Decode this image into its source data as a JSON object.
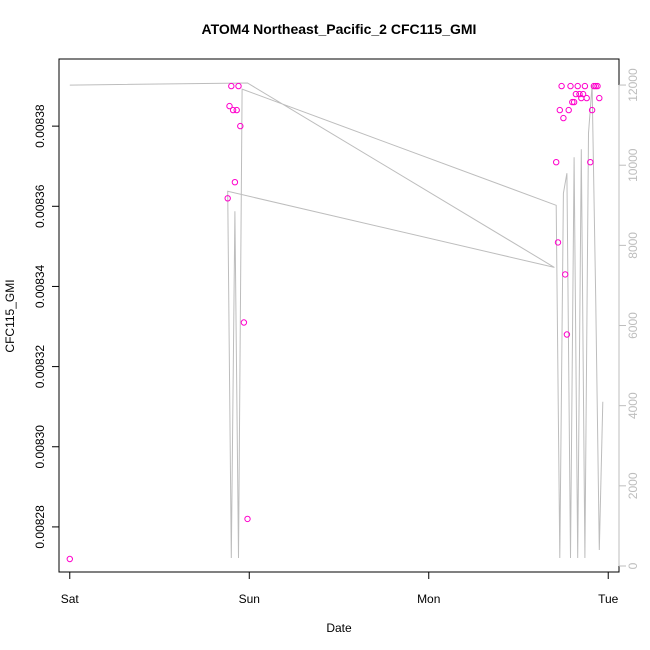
{
  "chart_data": {
    "type": "scatter",
    "title": "ATOM4 Northeast_Pacific_2 CFC115_GMI",
    "xlabel": "Date",
    "ylabel": "CFC115_GMI",
    "x_ticks": [
      "Sat",
      "Sun",
      "Mon",
      "Tue"
    ],
    "x_tick_days": [
      0,
      1,
      2,
      3
    ],
    "xlim_days": [
      -0.06,
      3.06
    ],
    "ylim": [
      0.00826875,
      0.00839675
    ],
    "y_ticks": [
      0.00828,
      0.0083,
      0.00832,
      0.00834,
      0.00836,
      0.00838
    ],
    "y_tick_labels": [
      "0.00828",
      "0.00830",
      "0.00832",
      "0.00834",
      "0.00836",
      "0.00838"
    ],
    "right_ylim": [
      -150,
      12650
    ],
    "right_ticks": [
      0,
      2000,
      4000,
      6000,
      8000,
      10000,
      12000
    ],
    "right_tick_labels": [
      "0",
      "2000",
      "4000",
      "6000",
      "8000",
      "10000",
      "12000"
    ],
    "series": [
      {
        "color": "#ff00cc",
        "marker": "circle",
        "points": [
          [
            0.0,
            0.008272
          ],
          [
            0.88,
            0.008362
          ],
          [
            0.89,
            0.008385
          ],
          [
            0.9,
            0.00839
          ],
          [
            0.91,
            0.008384
          ],
          [
            0.92,
            0.008366
          ],
          [
            0.93,
            0.008384
          ],
          [
            0.94,
            0.00839
          ],
          [
            0.95,
            0.00838
          ],
          [
            0.97,
            0.008331
          ],
          [
            0.99,
            0.008282
          ],
          [
            2.71,
            0.008371
          ],
          [
            2.72,
            0.008351
          ],
          [
            2.73,
            0.008384
          ],
          [
            2.74,
            0.00839
          ],
          [
            2.75,
            0.008382
          ],
          [
            2.76,
            0.008343
          ],
          [
            2.77,
            0.008328
          ],
          [
            2.78,
            0.008384
          ],
          [
            2.79,
            0.00839
          ],
          [
            2.8,
            0.008386
          ],
          [
            2.81,
            0.008386
          ],
          [
            2.82,
            0.008388
          ],
          [
            2.83,
            0.00839
          ],
          [
            2.84,
            0.008388
          ],
          [
            2.85,
            0.008387
          ],
          [
            2.86,
            0.008388
          ],
          [
            2.87,
            0.00839
          ],
          [
            2.88,
            0.008387
          ],
          [
            2.9,
            0.008371
          ],
          [
            2.91,
            0.008384
          ],
          [
            2.92,
            0.00839
          ],
          [
            2.93,
            0.00839
          ],
          [
            2.94,
            0.00839
          ],
          [
            2.95,
            0.008387
          ]
        ]
      },
      {
        "color": "#bdbdbd",
        "marker": "line",
        "axis": "right",
        "points": [
          [
            0.0,
            12000
          ],
          [
            0.99,
            12050
          ],
          [
            2.7,
            7450
          ],
          [
            0.88,
            9350
          ],
          [
            0.9,
            200
          ],
          [
            0.92,
            8850
          ],
          [
            0.94,
            200
          ],
          [
            0.96,
            11900
          ],
          [
            2.71,
            9000
          ],
          [
            2.73,
            200
          ],
          [
            2.75,
            9300
          ],
          [
            2.77,
            9800
          ],
          [
            2.79,
            200
          ],
          [
            2.81,
            10200
          ],
          [
            2.83,
            200
          ],
          [
            2.85,
            10400
          ],
          [
            2.87,
            200
          ],
          [
            2.89,
            10800
          ],
          [
            2.91,
            12000
          ],
          [
            2.93,
            6700
          ],
          [
            2.95,
            400
          ],
          [
            2.97,
            4100
          ]
        ]
      }
    ]
  }
}
